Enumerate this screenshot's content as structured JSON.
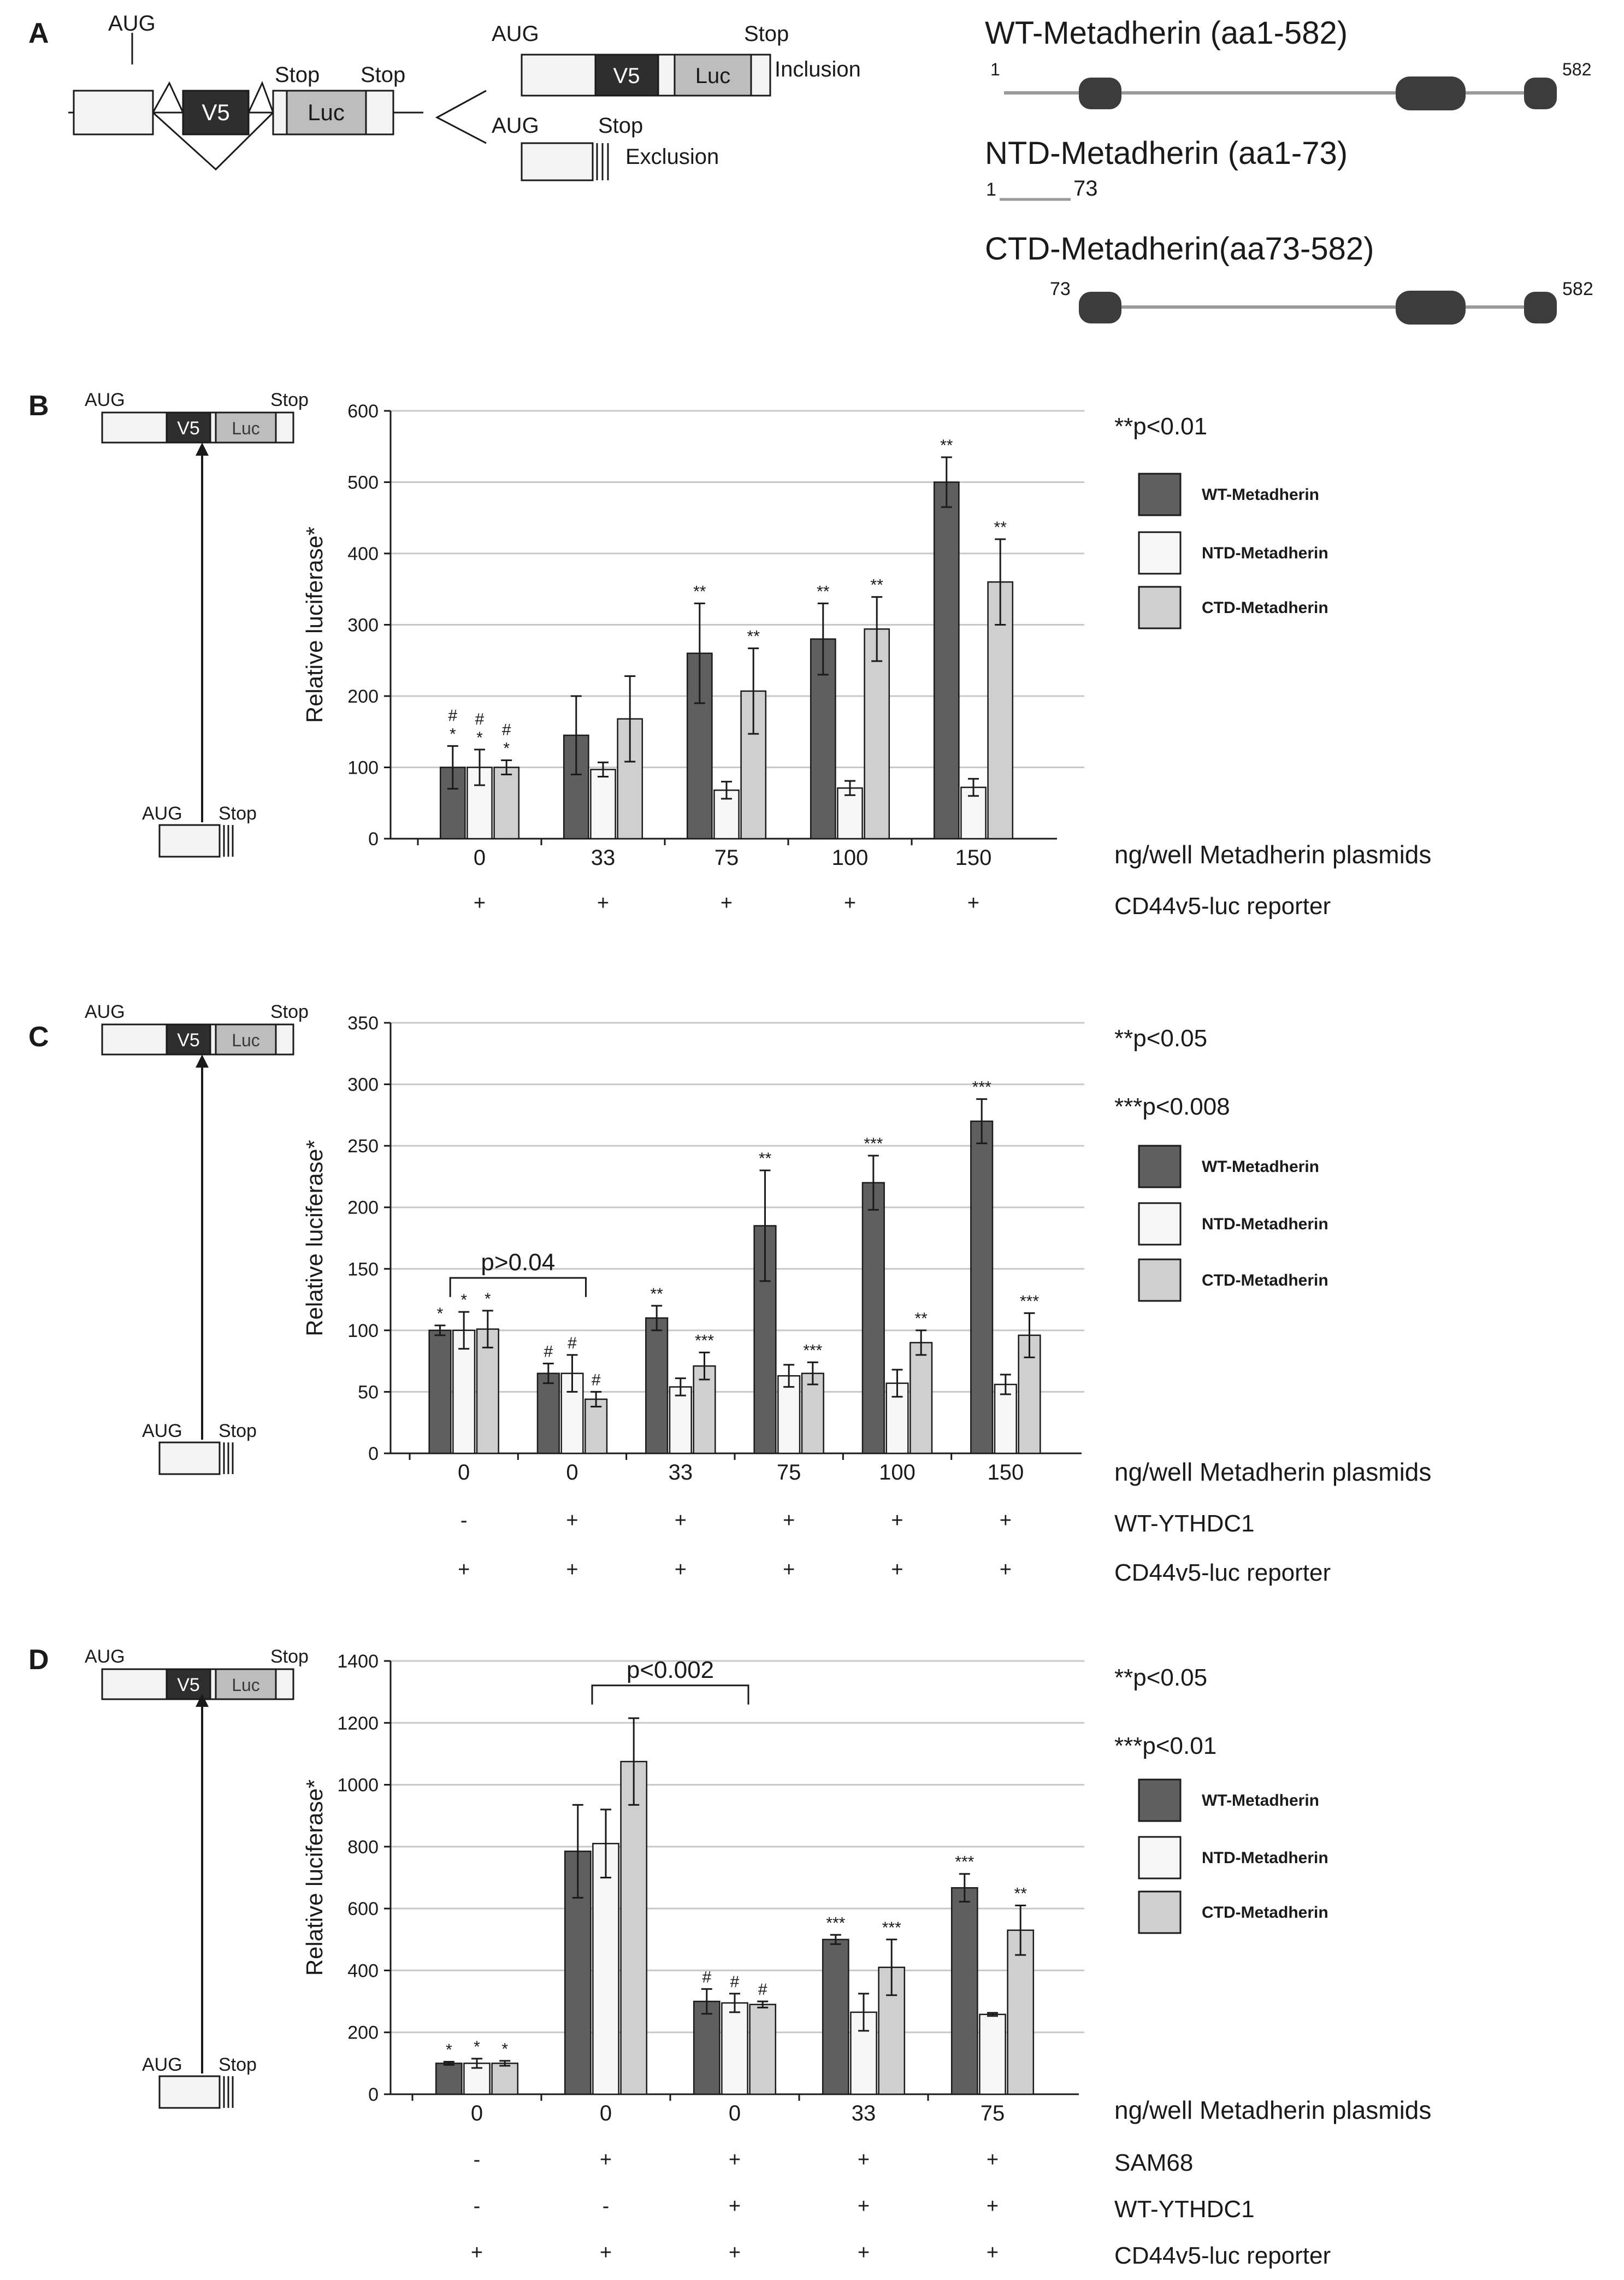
{
  "colors": {
    "wt": "#5f5f5f",
    "ntd": "#f7f7f7",
    "ctd": "#cfcfcf",
    "grid": "#c8c8c8",
    "axis": "#1a1a1a",
    "dark_box": "#2e2e2e",
    "luc_box": "#bdbdbd",
    "exon": "#f3f3f3"
  },
  "panelA": {
    "letter": "A",
    "schematic": {
      "aug": "AUG",
      "stop1": "Stop",
      "stop2": "Stop",
      "v5": "V5",
      "luc": "Luc"
    },
    "inclusion": {
      "aug": "AUG",
      "stop": "Stop",
      "v5": "V5",
      "luc": "Luc",
      "label": "Inclusion"
    },
    "exclusion": {
      "aug": "AUG",
      "stop": "Stop",
      "label": "Exclusion"
    },
    "proteins": [
      {
        "title": "WT-Metadherin (aa1-582)",
        "start": "1",
        "end": "582"
      },
      {
        "title": "NTD-Metadherin (aa1-73)",
        "start": "1",
        "end": "73"
      },
      {
        "title": "CTD-Metadherin(aa73-582)",
        "start": "73",
        "end": "582"
      }
    ]
  },
  "reporter": {
    "aug": "AUG",
    "stop": "Stop",
    "v5": "V5",
    "luc": "Luc"
  },
  "legend_labels": [
    "WT-Metadherin",
    "NTD-Metadherin",
    "CTD-Metadherin"
  ],
  "chart_data": [
    {
      "panel": "B",
      "type": "bar",
      "ylabel": "Relative luciferase*",
      "ylim": [
        0,
        600
      ],
      "yticks": [
        0,
        100,
        200,
        300,
        400,
        500,
        600
      ],
      "categories": [
        "0",
        "33",
        "75",
        "100",
        "150"
      ],
      "xlabel": "ng/well Metadherin plasmids",
      "rows": [
        {
          "label": "CD44v5-luc reporter",
          "values": [
            "+",
            "+",
            "+",
            "+",
            "+"
          ]
        }
      ],
      "significance": [
        "**p<0.01"
      ],
      "series": [
        {
          "name": "WT-Metadherin",
          "values": [
            100,
            145,
            260,
            280,
            500
          ],
          "errors": [
            30,
            55,
            70,
            50,
            35
          ],
          "marks": [
            "#\n*",
            "",
            "**",
            "**",
            "**"
          ]
        },
        {
          "name": "NTD-Metadherin",
          "values": [
            100,
            97,
            68,
            71,
            72
          ],
          "errors": [
            25,
            10,
            12,
            10,
            12
          ],
          "marks": [
            "#\n*",
            "",
            "",
            "",
            ""
          ]
        },
        {
          "name": "CTD-Metadherin",
          "values": [
            100,
            168,
            207,
            294,
            360
          ],
          "errors": [
            10,
            60,
            60,
            45,
            60
          ],
          "marks": [
            "#\n*",
            "",
            "**",
            "**",
            "**"
          ]
        }
      ]
    },
    {
      "panel": "C",
      "type": "bar",
      "ylabel": "Relative luciferase*",
      "ylim": [
        0,
        350
      ],
      "yticks": [
        0,
        50,
        100,
        150,
        200,
        250,
        300,
        350
      ],
      "categories": [
        "0",
        "0",
        "33",
        "75",
        "100",
        "150"
      ],
      "xlabel": "ng/well Metadherin plasmids",
      "rows": [
        {
          "label": "WT-YTHDC1",
          "values": [
            "-",
            "+",
            "+",
            "+",
            "+",
            "+"
          ]
        },
        {
          "label": "CD44v5-luc reporter",
          "values": [
            "+",
            "+",
            "+",
            "+",
            "+",
            "+"
          ]
        }
      ],
      "significance": [
        "**p<0.05",
        "***p<0.008"
      ],
      "bracket": {
        "label": "p>0.04",
        "from": 0,
        "to": 1
      },
      "series": [
        {
          "name": "WT-Metadherin",
          "values": [
            100,
            65,
            110,
            185,
            220,
            270
          ],
          "errors": [
            4,
            8,
            10,
            45,
            22,
            18
          ],
          "marks": [
            "*",
            "#",
            "**",
            "**",
            "***",
            "***"
          ]
        },
        {
          "name": "NTD-Metadherin",
          "values": [
            100,
            65,
            54,
            63,
            57,
            56
          ],
          "errors": [
            15,
            15,
            7,
            9,
            11,
            8
          ],
          "marks": [
            "*",
            "#",
            "",
            "",
            "",
            ""
          ]
        },
        {
          "name": "CTD-Metadherin",
          "values": [
            101,
            44,
            71,
            65,
            90,
            96
          ],
          "errors": [
            15,
            6,
            11,
            9,
            10,
            18
          ],
          "marks": [
            "*",
            "#",
            "***",
            "***",
            "**",
            "***"
          ]
        }
      ]
    },
    {
      "panel": "D",
      "type": "bar",
      "ylabel": "Relative luciferase*",
      "ylim": [
        0,
        1400
      ],
      "yticks": [
        0,
        200,
        400,
        600,
        800,
        1000,
        1200,
        1400
      ],
      "categories": [
        "0",
        "0",
        "0",
        "33",
        "75"
      ],
      "xlabel": "ng/well Metadherin plasmids",
      "rows": [
        {
          "label": "SAM68",
          "values": [
            "-",
            "+",
            "+",
            "+",
            "+"
          ]
        },
        {
          "label": "WT-YTHDC1",
          "values": [
            "-",
            "-",
            "+",
            "+",
            "+"
          ]
        },
        {
          "label": "CD44v5-luc reporter",
          "values": [
            "+",
            "+",
            "+",
            "+",
            "+"
          ]
        }
      ],
      "significance": [
        "**p<0.05",
        "***p<0.01"
      ],
      "bracket": {
        "label": "p<0.002",
        "from": 1,
        "to": 2
      },
      "series": [
        {
          "name": "WT-Metadherin",
          "values": [
            100,
            785,
            300,
            500,
            667
          ],
          "errors": [
            5,
            150,
            40,
            15,
            45
          ],
          "marks": [
            "*",
            "",
            "#",
            "***",
            "***"
          ]
        },
        {
          "name": "NTD-Metadherin",
          "values": [
            100,
            810,
            295,
            265,
            258
          ],
          "errors": [
            15,
            110,
            30,
            60,
            5
          ],
          "marks": [
            "*",
            "",
            "#",
            "",
            ""
          ]
        },
        {
          "name": "CTD-Metadherin",
          "values": [
            100,
            1075,
            290,
            410,
            530
          ],
          "errors": [
            8,
            140,
            10,
            90,
            80
          ],
          "marks": [
            "*",
            "",
            "#",
            "***",
            "**"
          ]
        }
      ]
    }
  ]
}
